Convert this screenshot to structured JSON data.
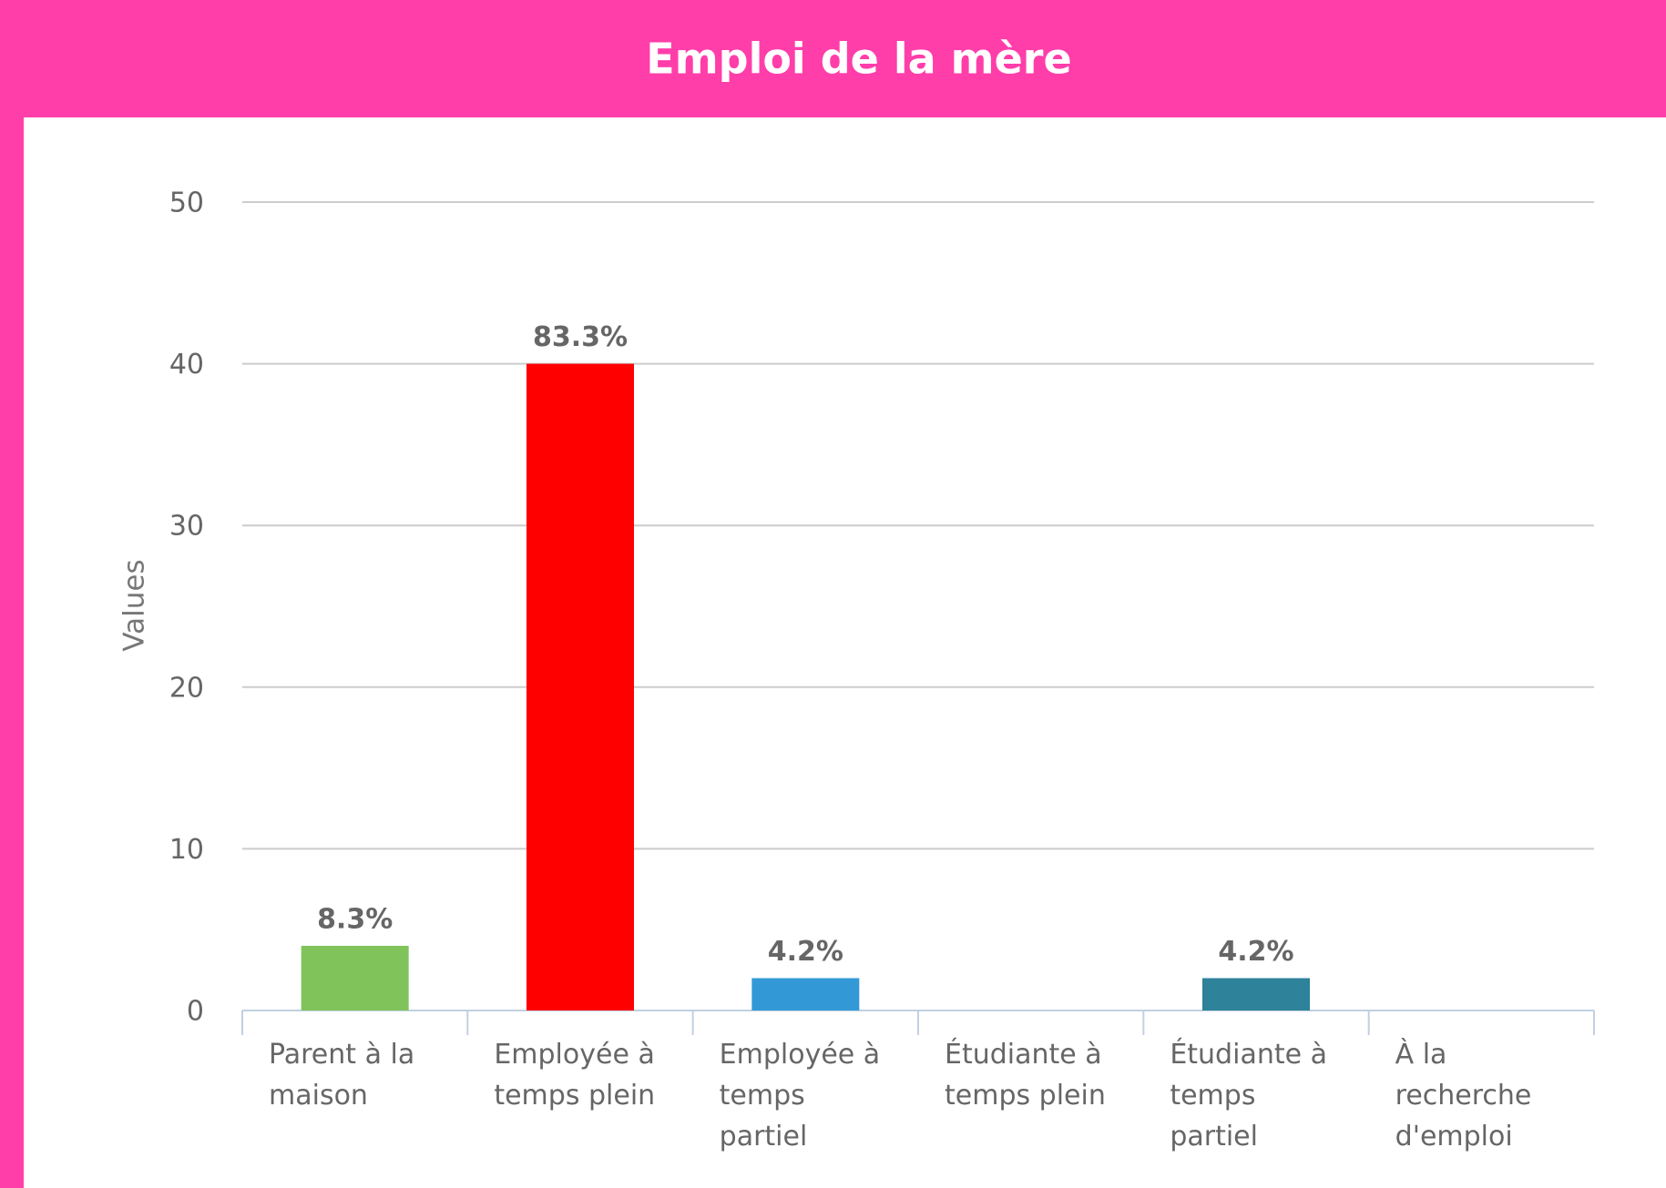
{
  "chart_data": {
    "type": "bar",
    "title": "Emploi de la mère",
    "y_label": "Values",
    "categories": [
      "Parent à la\nmaison",
      "Employée à\ntemps plein",
      "Employée à\ntemps\npartiel",
      "Étudiante à\ntemps plein",
      "Étudiante à\ntemps\npartiel",
      "À la\nrecherche\nd'emploi"
    ],
    "values": [
      4,
      40,
      2,
      0,
      2,
      0
    ],
    "value_labels": [
      "8.3%",
      "83.3%",
      "4.2%",
      null,
      "4.2%",
      null
    ],
    "colors": [
      "#80c35a",
      "#ff0000",
      "#3399d6",
      null,
      "#2e8299",
      null
    ],
    "ylim": [
      0,
      50
    ],
    "yticks": [
      0,
      10,
      20,
      30,
      40,
      50
    ],
    "grid": true
  }
}
